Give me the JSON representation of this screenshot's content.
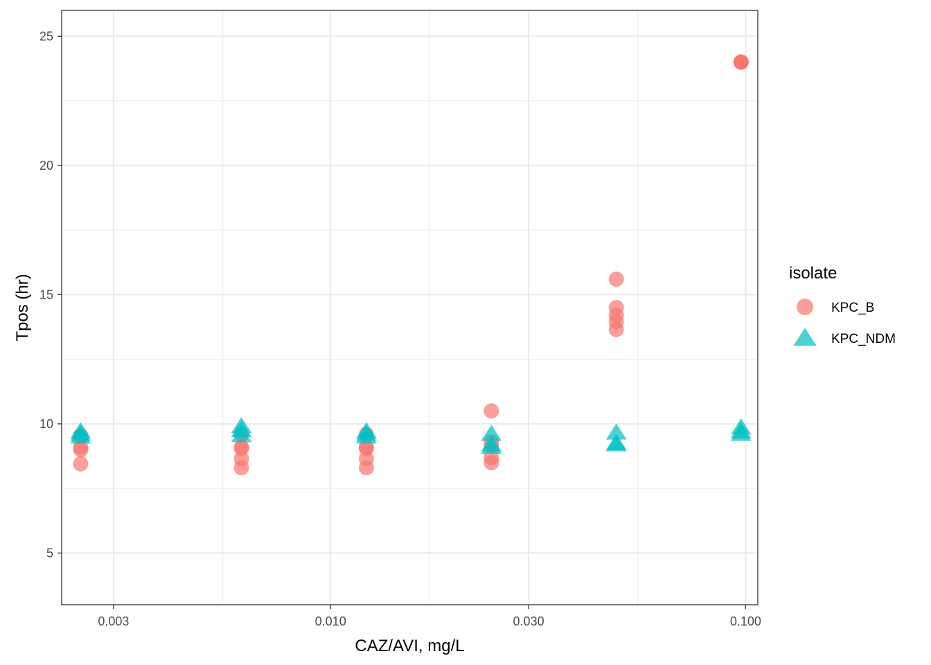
{
  "chart_data": {
    "type": "scatter",
    "title": "",
    "xlabel": "CAZ/AVI, mg/L",
    "ylabel": "Tpos (hr)",
    "x_scale": "log10",
    "xlim": [
      0.00225,
      0.107
    ],
    "ylim": [
      3.0,
      26.0
    ],
    "x_ticks": [
      {
        "value": 0.003,
        "label": "0.003"
      },
      {
        "value": 0.01,
        "label": "0.010"
      },
      {
        "value": 0.03,
        "label": "0.030"
      },
      {
        "value": 0.1,
        "label": "0.100"
      }
    ],
    "x_minor_ticks": [
      0.0055,
      0.0173,
      0.055
    ],
    "y_ticks": [
      {
        "value": 5,
        "label": "5"
      },
      {
        "value": 10,
        "label": "10"
      },
      {
        "value": 15,
        "label": "15"
      },
      {
        "value": 20,
        "label": "20"
      },
      {
        "value": 25,
        "label": "25"
      }
    ],
    "y_minor_ticks": [
      7.5,
      12.5,
      17.5,
      22.5
    ],
    "grid": true,
    "legend": {
      "title": "isolate",
      "position": "right"
    },
    "series": [
      {
        "name": "KPC_B",
        "shape": "circle",
        "color": "#F8766D",
        "points": [
          {
            "x": 0.0025,
            "y": 8.45
          },
          {
            "x": 0.0025,
            "y": 9.0
          },
          {
            "x": 0.0025,
            "y": 9.1
          },
          {
            "x": 0.0025,
            "y": 9.5
          },
          {
            "x": 0.0025,
            "y": 9.55
          },
          {
            "x": 0.0061,
            "y": 8.3
          },
          {
            "x": 0.0061,
            "y": 8.65
          },
          {
            "x": 0.0061,
            "y": 9.05
          },
          {
            "x": 0.0061,
            "y": 9.1
          },
          {
            "x": 0.0061,
            "y": 9.6
          },
          {
            "x": 0.0122,
            "y": 8.3
          },
          {
            "x": 0.0122,
            "y": 8.65
          },
          {
            "x": 0.0122,
            "y": 9.05
          },
          {
            "x": 0.0122,
            "y": 9.1
          },
          {
            "x": 0.0122,
            "y": 9.6
          },
          {
            "x": 0.0244,
            "y": 8.5
          },
          {
            "x": 0.0244,
            "y": 8.7
          },
          {
            "x": 0.0244,
            "y": 9.15
          },
          {
            "x": 0.0244,
            "y": 9.3
          },
          {
            "x": 0.0244,
            "y": 10.5
          },
          {
            "x": 0.0488,
            "y": 13.65
          },
          {
            "x": 0.0488,
            "y": 13.95
          },
          {
            "x": 0.0488,
            "y": 14.2
          },
          {
            "x": 0.0488,
            "y": 14.5
          },
          {
            "x": 0.0488,
            "y": 15.6
          },
          {
            "x": 0.0975,
            "y": 24.0
          },
          {
            "x": 0.0975,
            "y": 24.0
          },
          {
            "x": 0.0975,
            "y": 24.0
          },
          {
            "x": 0.0975,
            "y": 24.0
          },
          {
            "x": 0.0975,
            "y": 24.0
          }
        ]
      },
      {
        "name": "KPC_NDM",
        "shape": "triangle",
        "color": "#00BFC4",
        "points": [
          {
            "x": 0.0025,
            "y": 9.5
          },
          {
            "x": 0.0025,
            "y": 9.6
          },
          {
            "x": 0.0025,
            "y": 9.7
          },
          {
            "x": 0.0061,
            "y": 9.55
          },
          {
            "x": 0.0061,
            "y": 9.75
          },
          {
            "x": 0.0061,
            "y": 9.9
          },
          {
            "x": 0.0122,
            "y": 9.5
          },
          {
            "x": 0.0122,
            "y": 9.6
          },
          {
            "x": 0.0122,
            "y": 9.7
          },
          {
            "x": 0.0244,
            "y": 9.1
          },
          {
            "x": 0.0244,
            "y": 9.2
          },
          {
            "x": 0.0244,
            "y": 9.6
          },
          {
            "x": 0.0488,
            "y": 9.2
          },
          {
            "x": 0.0488,
            "y": 9.25
          },
          {
            "x": 0.0488,
            "y": 9.65
          },
          {
            "x": 0.0975,
            "y": 9.6
          },
          {
            "x": 0.0975,
            "y": 9.7
          },
          {
            "x": 0.0975,
            "y": 9.85
          }
        ]
      }
    ]
  }
}
